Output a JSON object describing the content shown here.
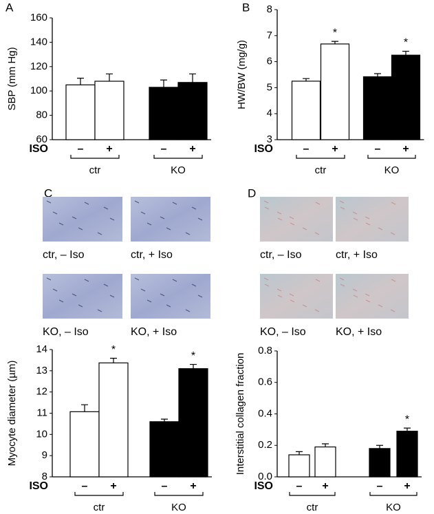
{
  "chart_data": [
    {
      "type": "bar",
      "panel": "A",
      "ylabel": "SBP (mm Hg)",
      "iso_label": "ISO",
      "categories": [
        "–",
        "+",
        "–",
        "+"
      ],
      "groups": [
        "ctr",
        "KO"
      ],
      "values": [
        105,
        108,
        103,
        107
      ],
      "errors": [
        5.5,
        6,
        6,
        7
      ],
      "colors": [
        "#ffffff",
        "#ffffff",
        "#000000",
        "#000000"
      ],
      "significance": [
        null,
        null,
        null,
        null
      ],
      "ylim": [
        60,
        160
      ],
      "yticks": [
        60,
        80,
        100,
        120,
        140,
        160
      ]
    },
    {
      "type": "bar",
      "panel": "B",
      "ylabel": "HW/BW (mg/g)",
      "iso_label": "ISO",
      "categories": [
        "–",
        "+",
        "–",
        "+"
      ],
      "groups": [
        "ctr",
        "KO"
      ],
      "values": [
        5.25,
        6.68,
        5.42,
        6.25
      ],
      "errors": [
        0.1,
        0.1,
        0.12,
        0.15
      ],
      "colors": [
        "#ffffff",
        "#ffffff",
        "#000000",
        "#000000"
      ],
      "significance": [
        null,
        "*",
        null,
        "*"
      ],
      "ylim": [
        3,
        8
      ],
      "yticks": [
        3,
        4,
        5,
        6,
        7,
        8
      ]
    },
    {
      "type": "bar",
      "panel": "C",
      "ylabel": "Myocyte diameter (µm)",
      "iso_label": "ISO",
      "categories": [
        "–",
        "+",
        "–",
        "+"
      ],
      "groups": [
        "ctr",
        "KO"
      ],
      "values": [
        11.07,
        13.37,
        10.6,
        13.1
      ],
      "errors": [
        0.33,
        0.22,
        0.12,
        0.2
      ],
      "colors": [
        "#ffffff",
        "#ffffff",
        "#000000",
        "#000000"
      ],
      "significance": [
        null,
        "*",
        null,
        "*"
      ],
      "ylim": [
        8,
        14
      ],
      "yticks": [
        8,
        9,
        10,
        11,
        12,
        13,
        14
      ],
      "micrographs": [
        "ctr, – Iso",
        "ctr, + Iso",
        "KO, – Iso",
        "KO, + Iso"
      ]
    },
    {
      "type": "bar",
      "panel": "D",
      "ylabel": "Interstitial collagen fraction",
      "iso_label": "ISO",
      "categories": [
        "–",
        "+",
        "–",
        "+"
      ],
      "groups": [
        "ctr",
        "KO"
      ],
      "values": [
        0.14,
        0.19,
        0.18,
        0.29
      ],
      "errors": [
        0.02,
        0.02,
        0.02,
        0.02
      ],
      "colors": [
        "#ffffff",
        "#ffffff",
        "#000000",
        "#000000"
      ],
      "significance": [
        null,
        null,
        null,
        "*"
      ],
      "ylim": [
        0,
        0.8
      ],
      "yticks": [
        {
          "value": 0,
          "label": "0.0"
        },
        0.2,
        0.4,
        0.6,
        0.8
      ],
      "micrographs": [
        "ctr, – Iso",
        "ctr, + Iso",
        "KO, – Iso",
        "KO, + Iso"
      ]
    }
  ]
}
